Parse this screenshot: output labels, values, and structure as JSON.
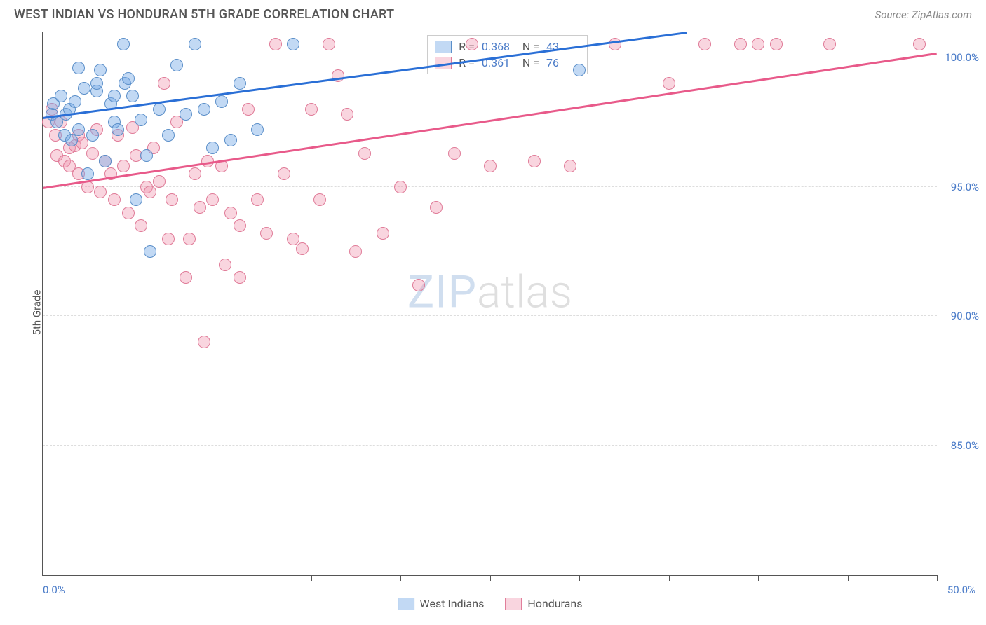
{
  "header": {
    "title": "WEST INDIAN VS HONDURAN 5TH GRADE CORRELATION CHART",
    "source": "Source: ZipAtlas.com"
  },
  "watermark": {
    "zip": "ZIP",
    "atlas": "atlas"
  },
  "chart": {
    "type": "scatter",
    "y_axis_label": "5th Grade",
    "xlim": [
      0,
      50
    ],
    "ylim": [
      80,
      101
    ],
    "x_ticks": [
      0,
      5,
      10,
      15,
      20,
      25,
      30,
      35,
      40,
      45,
      50
    ],
    "x_tick_labels": {
      "0": "0.0%",
      "50": "50.0%"
    },
    "y_gridlines": [
      85,
      90,
      95,
      100
    ],
    "y_tick_labels": {
      "85": "85.0%",
      "90": "90.0%",
      "95": "95.0%",
      "100": "100.0%"
    },
    "grid_color": "#dddddd",
    "axis_color": "#555555",
    "background_color": "#ffffff",
    "tick_label_color": "#4a7bc8",
    "point_radius": 9,
    "series": [
      {
        "name": "West Indians",
        "fill_color": "rgba(120,170,230,0.45)",
        "stroke_color": "#5b8fc9",
        "line_color": "#2a6fd6",
        "r_value": "0.368",
        "n_value": "43",
        "trend": {
          "x1": 0,
          "y1": 97.7,
          "x2": 36,
          "y2": 101
        },
        "points": [
          [
            0.5,
            97.8
          ],
          [
            0.6,
            98.2
          ],
          [
            0.8,
            97.5
          ],
          [
            1.0,
            98.5
          ],
          [
            1.2,
            97.0
          ],
          [
            1.3,
            97.8
          ],
          [
            1.5,
            98.0
          ],
          [
            1.6,
            96.8
          ],
          [
            1.8,
            98.3
          ],
          [
            2.0,
            97.2
          ],
          [
            2.0,
            99.6
          ],
          [
            2.3,
            98.8
          ],
          [
            2.5,
            95.5
          ],
          [
            2.8,
            97.0
          ],
          [
            3.0,
            98.7
          ],
          [
            3.0,
            99.0
          ],
          [
            3.2,
            99.5
          ],
          [
            3.5,
            96.0
          ],
          [
            3.8,
            98.2
          ],
          [
            4.0,
            97.5
          ],
          [
            4.0,
            98.5
          ],
          [
            4.2,
            97.2
          ],
          [
            4.5,
            100.5
          ],
          [
            4.6,
            99.0
          ],
          [
            4.8,
            99.2
          ],
          [
            5.0,
            98.5
          ],
          [
            5.2,
            94.5
          ],
          [
            5.5,
            97.6
          ],
          [
            5.8,
            96.2
          ],
          [
            6.0,
            92.5
          ],
          [
            6.5,
            98.0
          ],
          [
            7.0,
            97.0
          ],
          [
            7.5,
            99.7
          ],
          [
            8.0,
            97.8
          ],
          [
            8.5,
            100.5
          ],
          [
            9.0,
            98.0
          ],
          [
            9.5,
            96.5
          ],
          [
            10.0,
            98.3
          ],
          [
            10.5,
            96.8
          ],
          [
            11.0,
            99.0
          ],
          [
            12.0,
            97.2
          ],
          [
            14.0,
            100.5
          ],
          [
            30.0,
            99.5
          ]
        ]
      },
      {
        "name": "Hondurans",
        "fill_color": "rgba(240,150,175,0.4)",
        "stroke_color": "#e07b98",
        "line_color": "#e85a8a",
        "r_value": "0.361",
        "n_value": "76",
        "trend": {
          "x1": 0,
          "y1": 95.0,
          "x2": 50,
          "y2": 100.2
        },
        "points": [
          [
            0.3,
            97.5
          ],
          [
            0.5,
            98.0
          ],
          [
            0.7,
            97.0
          ],
          [
            0.8,
            96.2
          ],
          [
            1.0,
            97.5
          ],
          [
            1.2,
            96.0
          ],
          [
            1.5,
            96.5
          ],
          [
            1.5,
            95.8
          ],
          [
            1.8,
            96.6
          ],
          [
            2.0,
            97.0
          ],
          [
            2.0,
            95.5
          ],
          [
            2.2,
            96.7
          ],
          [
            2.5,
            95.0
          ],
          [
            2.8,
            96.3
          ],
          [
            3.0,
            97.2
          ],
          [
            3.2,
            94.8
          ],
          [
            3.5,
            96.0
          ],
          [
            3.8,
            95.5
          ],
          [
            4.0,
            94.5
          ],
          [
            4.2,
            97.0
          ],
          [
            4.5,
            95.8
          ],
          [
            4.8,
            94.0
          ],
          [
            5.0,
            97.3
          ],
          [
            5.2,
            96.2
          ],
          [
            5.5,
            93.5
          ],
          [
            5.8,
            95.0
          ],
          [
            6.0,
            94.8
          ],
          [
            6.2,
            96.5
          ],
          [
            6.5,
            95.2
          ],
          [
            6.8,
            99.0
          ],
          [
            7.0,
            93.0
          ],
          [
            7.2,
            94.5
          ],
          [
            7.5,
            97.5
          ],
          [
            8.0,
            91.5
          ],
          [
            8.2,
            93.0
          ],
          [
            8.5,
            95.5
          ],
          [
            8.8,
            94.2
          ],
          [
            9.0,
            89.0
          ],
          [
            9.2,
            96.0
          ],
          [
            9.5,
            94.5
          ],
          [
            10.0,
            95.8
          ],
          [
            10.2,
            92.0
          ],
          [
            10.5,
            94.0
          ],
          [
            11.0,
            91.5
          ],
          [
            11.0,
            93.5
          ],
          [
            11.5,
            98.0
          ],
          [
            12.0,
            94.5
          ],
          [
            12.5,
            93.2
          ],
          [
            13.0,
            100.5
          ],
          [
            13.5,
            95.5
          ],
          [
            14.0,
            93.0
          ],
          [
            14.5,
            92.6
          ],
          [
            15.0,
            98.0
          ],
          [
            15.5,
            94.5
          ],
          [
            16.0,
            100.5
          ],
          [
            16.5,
            99.3
          ],
          [
            17.0,
            97.8
          ],
          [
            17.5,
            92.5
          ],
          [
            18.0,
            96.3
          ],
          [
            19.0,
            93.2
          ],
          [
            20.0,
            95.0
          ],
          [
            21.0,
            91.2
          ],
          [
            22.0,
            94.2
          ],
          [
            23.0,
            96.3
          ],
          [
            24.0,
            100.5
          ],
          [
            25.0,
            95.8
          ],
          [
            27.5,
            96.0
          ],
          [
            29.5,
            95.8
          ],
          [
            32.0,
            100.5
          ],
          [
            35.0,
            99.0
          ],
          [
            37.0,
            100.5
          ],
          [
            39.0,
            100.5
          ],
          [
            40.0,
            100.5
          ],
          [
            41.0,
            100.5
          ],
          [
            44.0,
            100.5
          ],
          [
            49.0,
            100.5
          ]
        ]
      }
    ]
  },
  "stats_box": {
    "r_label": "R =",
    "n_label": "N ="
  },
  "legend": {
    "items": [
      {
        "label": "West Indians",
        "fill": "rgba(120,170,230,0.45)",
        "stroke": "#5b8fc9"
      },
      {
        "label": "Hondurans",
        "fill": "rgba(240,150,175,0.4)",
        "stroke": "#e07b98"
      }
    ]
  }
}
